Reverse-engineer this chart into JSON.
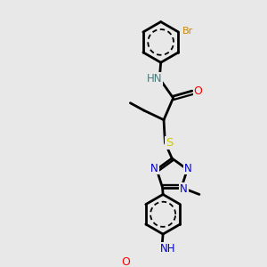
{
  "bg_color": "#e8e8e8",
  "atom_colors": {
    "C": "#000000",
    "N": "#0000cc",
    "O": "#ff0000",
    "S": "#cccc00",
    "Br": "#cc8800",
    "H": "#4a7a7a"
  },
  "bond_color": "#000000",
  "bond_width": 2.0,
  "figsize": [
    3.0,
    3.0
  ],
  "dpi": 100
}
